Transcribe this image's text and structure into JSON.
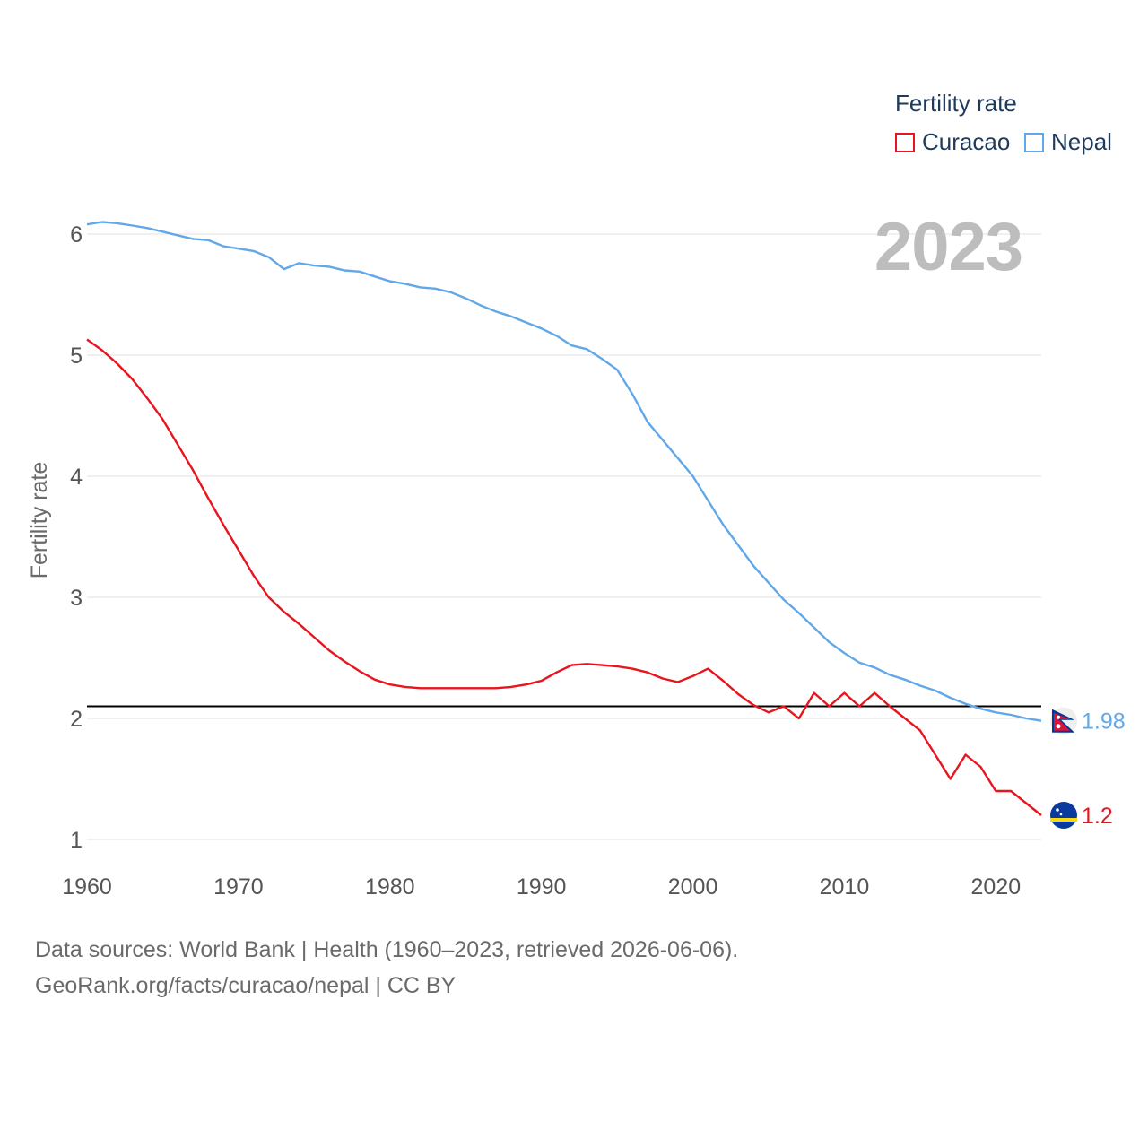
{
  "legend": {
    "title": "Fertility rate",
    "items": [
      {
        "label": "Curacao",
        "color": "#e8141e"
      },
      {
        "label": "Nepal",
        "color": "#62a8e8"
      }
    ]
  },
  "year_label": "2023",
  "source": {
    "line1": "Data sources: World Bank | Health (1960–2023, retrieved 2026-06-06).",
    "line2": "GeoRank.org/facts/curacao/nepal | CC BY"
  },
  "chart_data": {
    "type": "line",
    "title": "Fertility rate",
    "xlabel": "",
    "ylabel": "Fertility rate",
    "xlim": [
      1960,
      2023
    ],
    "ylim": [
      0.8,
      6.3
    ],
    "x_ticks": [
      1960,
      1970,
      1980,
      1990,
      2000,
      2010,
      2020
    ],
    "y_ticks": [
      1,
      2,
      3,
      4,
      5,
      6
    ],
    "reference_line": 2.1,
    "grid": true,
    "x": [
      1960,
      1961,
      1962,
      1963,
      1964,
      1965,
      1966,
      1967,
      1968,
      1969,
      1970,
      1971,
      1972,
      1973,
      1974,
      1975,
      1976,
      1977,
      1978,
      1979,
      1980,
      1981,
      1982,
      1983,
      1984,
      1985,
      1986,
      1987,
      1988,
      1989,
      1990,
      1991,
      1992,
      1993,
      1994,
      1995,
      1996,
      1997,
      1998,
      1999,
      2000,
      2001,
      2002,
      2003,
      2004,
      2005,
      2006,
      2007,
      2008,
      2009,
      2010,
      2011,
      2012,
      2013,
      2014,
      2015,
      2016,
      2017,
      2018,
      2019,
      2020,
      2021,
      2022,
      2023
    ],
    "series": [
      {
        "name": "Curacao",
        "color": "#e8141e",
        "end_label": "1.2",
        "values": [
          5.13,
          5.04,
          4.93,
          4.8,
          4.64,
          4.47,
          4.26,
          4.05,
          3.82,
          3.6,
          3.39,
          3.18,
          3.0,
          2.88,
          2.78,
          2.67,
          2.56,
          2.47,
          2.39,
          2.32,
          2.28,
          2.26,
          2.25,
          2.25,
          2.25,
          2.25,
          2.25,
          2.25,
          2.26,
          2.28,
          2.31,
          2.38,
          2.44,
          2.45,
          2.44,
          2.43,
          2.41,
          2.38,
          2.33,
          2.3,
          2.35,
          2.41,
          2.31,
          2.2,
          2.11,
          2.05,
          2.1,
          2.0,
          2.21,
          2.1,
          2.21,
          2.1,
          2.21,
          2.1,
          2.0,
          1.9,
          1.7,
          1.5,
          1.7,
          1.6,
          1.4,
          1.4,
          1.3,
          1.2
        ]
      },
      {
        "name": "Nepal",
        "color": "#62a8e8",
        "end_label": "1.98",
        "values": [
          6.08,
          6.1,
          6.09,
          6.07,
          6.05,
          6.02,
          5.99,
          5.96,
          5.95,
          5.9,
          5.88,
          5.86,
          5.81,
          5.71,
          5.76,
          5.74,
          5.73,
          5.7,
          5.69,
          5.65,
          5.61,
          5.59,
          5.56,
          5.55,
          5.52,
          5.47,
          5.41,
          5.36,
          5.32,
          5.27,
          5.22,
          5.16,
          5.08,
          5.05,
          4.97,
          4.88,
          4.68,
          4.45,
          4.3,
          4.15,
          4.0,
          3.8,
          3.6,
          3.43,
          3.26,
          3.12,
          2.98,
          2.87,
          2.75,
          2.63,
          2.54,
          2.46,
          2.42,
          2.36,
          2.32,
          2.27,
          2.23,
          2.17,
          2.12,
          2.08,
          2.05,
          2.03,
          2.0,
          1.98
        ]
      }
    ]
  }
}
